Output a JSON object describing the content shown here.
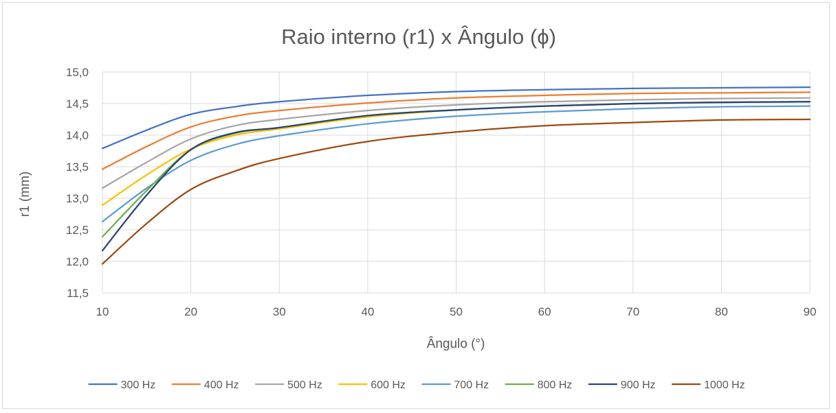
{
  "chart_data": {
    "type": "line",
    "title": "Raio interno (r1) x Ângulo (ϕ)",
    "xlabel": "Ângulo (°)",
    "ylabel": "r1 (mm)",
    "xlim": [
      10,
      90
    ],
    "ylim": [
      11.5,
      15.0
    ],
    "x_ticks": [
      "10",
      "20",
      "30",
      "40",
      "50",
      "60",
      "70",
      "80",
      "90"
    ],
    "y_ticks": [
      "11,5",
      "12,0",
      "12,5",
      "13,0",
      "13,5",
      "14,0",
      "14,5",
      "15,0"
    ],
    "grid": "vertical and horizontal",
    "legend_position": "bottom",
    "x": [
      10,
      15,
      20,
      25,
      30,
      40,
      50,
      60,
      70,
      80,
      90
    ],
    "series": [
      {
        "name": "300 Hz",
        "color": "#4472c4",
        "values": [
          13.79,
          14.08,
          14.33,
          14.45,
          14.53,
          14.63,
          14.69,
          14.72,
          14.74,
          14.75,
          14.76
        ]
      },
      {
        "name": "400 Hz",
        "color": "#ed7d31",
        "values": [
          13.46,
          13.82,
          14.13,
          14.3,
          14.39,
          14.51,
          14.59,
          14.63,
          14.66,
          14.67,
          14.68
        ]
      },
      {
        "name": "500 Hz",
        "color": "#a5a5a5",
        "values": [
          13.16,
          13.57,
          13.94,
          14.15,
          14.25,
          14.39,
          14.48,
          14.53,
          14.56,
          14.58,
          14.59
        ]
      },
      {
        "name": "600 Hz",
        "color": "#ffc000",
        "values": [
          12.89,
          13.37,
          13.78,
          14.0,
          14.1,
          14.29,
          14.4,
          14.46,
          14.5,
          14.52,
          14.53
        ]
      },
      {
        "name": "700 Hz",
        "color": "#5b9bd5",
        "values": [
          12.63,
          13.16,
          13.6,
          13.85,
          13.99,
          14.18,
          14.3,
          14.37,
          14.42,
          14.45,
          14.46
        ]
      },
      {
        "name": "800 Hz",
        "color": "#70ad47",
        "values": [
          12.39,
          13.12,
          13.77,
          14.03,
          14.12,
          14.31,
          14.4,
          14.46,
          14.5,
          14.52,
          14.53
        ]
      },
      {
        "name": "900 Hz",
        "color": "#264478",
        "values": [
          12.17,
          13.05,
          13.77,
          14.04,
          14.12,
          14.31,
          14.4,
          14.46,
          14.5,
          14.52,
          14.53
        ]
      },
      {
        "name": "1000 Hz",
        "color": "#9e480e",
        "values": [
          11.96,
          12.6,
          13.14,
          13.43,
          13.63,
          13.9,
          14.05,
          14.15,
          14.2,
          14.24,
          14.25
        ]
      }
    ]
  }
}
